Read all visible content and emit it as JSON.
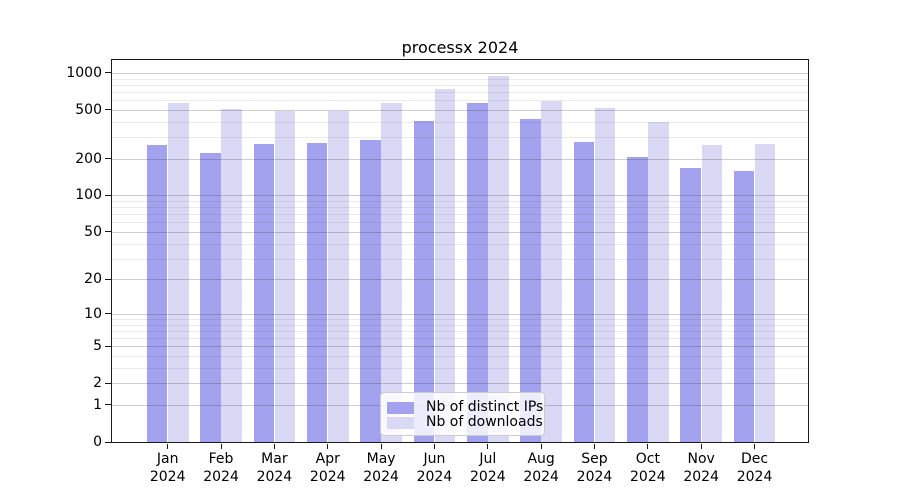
{
  "title": "processx 2024",
  "chart_data": {
    "type": "bar",
    "title": "processx 2024",
    "categories": [
      "Jan 2024",
      "Feb 2024",
      "Mar 2024",
      "Apr 2024",
      "May 2024",
      "Jun 2024",
      "Jul 2024",
      "Aug 2024",
      "Sep 2024",
      "Oct 2024",
      "Nov 2024",
      "Dec 2024"
    ],
    "series": [
      {
        "name": "Nb of distinct IPs",
        "color": "#a2a2ee",
        "values": [
          261,
          221,
          263,
          271,
          285,
          403,
          566,
          419,
          272,
          208,
          169,
          158
        ]
      },
      {
        "name": "Nb of downloads",
        "color": "#d9d9f6",
        "values": [
          568,
          513,
          487,
          493,
          572,
          735,
          938,
          595,
          519,
          399,
          261,
          265
        ]
      }
    ],
    "xlabel": "",
    "ylabel": "",
    "y_axis": {
      "scale": "log1p",
      "ticks": [
        0,
        1,
        2,
        5,
        10,
        20,
        50,
        100,
        200,
        500,
        1000
      ],
      "minor_gridlines": [
        3,
        4,
        6,
        7,
        8,
        9,
        30,
        40,
        60,
        70,
        80,
        90,
        300,
        400,
        600,
        700,
        800,
        900
      ],
      "range": [
        0,
        1350
      ]
    },
    "grid": true,
    "legend_position": "lower center",
    "colors": {
      "axis": "#1a1a1a",
      "text": "#000000",
      "major_grid": "#c9c9c9",
      "minor_grid": "#e7e7e7",
      "background": "#ffffff"
    }
  }
}
